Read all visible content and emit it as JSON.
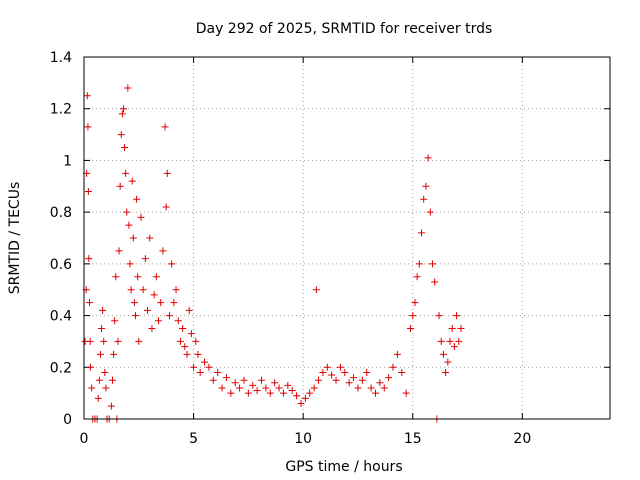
{
  "chart_data": {
    "type": "scatter",
    "title": "Day 292 of 2025, SRMTID for receiver trds",
    "xlabel": "GPS time / hours",
    "ylabel": "SRMTID / TECUs",
    "xlim": [
      0,
      24
    ],
    "ylim": [
      0,
      1.4
    ],
    "xticks": [
      0,
      5,
      10,
      15,
      20
    ],
    "xtick_labels": [
      "0",
      "5",
      "10",
      "15",
      "20"
    ],
    "yticks": [
      0,
      0.2,
      0.4,
      0.6,
      0.8,
      1.0,
      1.2,
      1.4
    ],
    "ytick_labels": [
      "0",
      "0.2",
      "0.4",
      "0.6",
      "0.8",
      "1",
      "1.2",
      "1.4"
    ],
    "grid": true,
    "marker": "+",
    "series": [
      {
        "name": "SRMTID",
        "color": "#e00000",
        "points": [
          [
            0.05,
            0.3
          ],
          [
            0.1,
            0.5
          ],
          [
            0.12,
            0.95
          ],
          [
            0.15,
            1.25
          ],
          [
            0.18,
            1.13
          ],
          [
            0.2,
            0.88
          ],
          [
            0.22,
            0.62
          ],
          [
            0.25,
            0.45
          ],
          [
            0.28,
            0.3
          ],
          [
            0.3,
            0.2
          ],
          [
            0.35,
            0.12
          ],
          [
            0.4,
            0.0
          ],
          [
            0.5,
            0.0
          ],
          [
            0.6,
            0.0
          ],
          [
            0.65,
            0.08
          ],
          [
            0.7,
            0.15
          ],
          [
            0.75,
            0.25
          ],
          [
            0.8,
            0.35
          ],
          [
            0.85,
            0.42
          ],
          [
            0.9,
            0.3
          ],
          [
            0.95,
            0.18
          ],
          [
            1.0,
            0.12
          ],
          [
            1.05,
            0.0
          ],
          [
            1.15,
            0.0
          ],
          [
            1.25,
            0.05
          ],
          [
            1.3,
            0.15
          ],
          [
            1.35,
            0.25
          ],
          [
            1.4,
            0.38
          ],
          [
            1.45,
            0.55
          ],
          [
            1.5,
            0.0
          ],
          [
            1.55,
            0.3
          ],
          [
            1.6,
            0.65
          ],
          [
            1.65,
            0.9
          ],
          [
            1.7,
            1.1
          ],
          [
            1.75,
            1.18
          ],
          [
            1.8,
            1.2
          ],
          [
            1.85,
            1.05
          ],
          [
            1.9,
            0.95
          ],
          [
            1.95,
            0.8
          ],
          [
            2.0,
            1.28
          ],
          [
            2.05,
            0.75
          ],
          [
            2.1,
            0.6
          ],
          [
            2.15,
            0.5
          ],
          [
            2.2,
            0.92
          ],
          [
            2.25,
            0.7
          ],
          [
            2.3,
            0.45
          ],
          [
            2.35,
            0.4
          ],
          [
            2.4,
            0.85
          ],
          [
            2.45,
            0.55
          ],
          [
            2.5,
            0.3
          ],
          [
            2.6,
            0.78
          ],
          [
            2.7,
            0.5
          ],
          [
            2.8,
            0.62
          ],
          [
            2.9,
            0.42
          ],
          [
            3.0,
            0.7
          ],
          [
            3.1,
            0.35
          ],
          [
            3.2,
            0.48
          ],
          [
            3.3,
            0.55
          ],
          [
            3.4,
            0.38
          ],
          [
            3.5,
            0.45
          ],
          [
            3.6,
            0.65
          ],
          [
            3.7,
            1.13
          ],
          [
            3.75,
            0.82
          ],
          [
            3.8,
            0.95
          ],
          [
            3.9,
            0.4
          ],
          [
            4.0,
            0.6
          ],
          [
            4.1,
            0.45
          ],
          [
            4.2,
            0.5
          ],
          [
            4.3,
            0.38
          ],
          [
            4.4,
            0.3
          ],
          [
            4.5,
            0.35
          ],
          [
            4.6,
            0.28
          ],
          [
            4.7,
            0.25
          ],
          [
            4.8,
            0.42
          ],
          [
            4.9,
            0.33
          ],
          [
            5.0,
            0.2
          ],
          [
            5.1,
            0.3
          ],
          [
            5.2,
            0.25
          ],
          [
            5.3,
            0.18
          ],
          [
            5.5,
            0.22
          ],
          [
            5.7,
            0.2
          ],
          [
            5.9,
            0.15
          ],
          [
            6.1,
            0.18
          ],
          [
            6.3,
            0.12
          ],
          [
            6.5,
            0.16
          ],
          [
            6.7,
            0.1
          ],
          [
            6.9,
            0.14
          ],
          [
            7.1,
            0.12
          ],
          [
            7.3,
            0.15
          ],
          [
            7.5,
            0.1
          ],
          [
            7.7,
            0.13
          ],
          [
            7.9,
            0.11
          ],
          [
            8.1,
            0.15
          ],
          [
            8.3,
            0.12
          ],
          [
            8.5,
            0.1
          ],
          [
            8.7,
            0.14
          ],
          [
            8.9,
            0.12
          ],
          [
            9.1,
            0.1
          ],
          [
            9.3,
            0.13
          ],
          [
            9.5,
            0.11
          ],
          [
            9.7,
            0.09
          ],
          [
            9.9,
            0.06
          ],
          [
            10.1,
            0.08
          ],
          [
            10.3,
            0.1
          ],
          [
            10.5,
            0.12
          ],
          [
            10.6,
            0.5
          ],
          [
            10.7,
            0.15
          ],
          [
            10.9,
            0.18
          ],
          [
            11.1,
            0.2
          ],
          [
            11.3,
            0.17
          ],
          [
            11.5,
            0.15
          ],
          [
            11.7,
            0.2
          ],
          [
            11.9,
            0.18
          ],
          [
            12.1,
            0.14
          ],
          [
            12.3,
            0.16
          ],
          [
            12.5,
            0.12
          ],
          [
            12.7,
            0.15
          ],
          [
            12.9,
            0.18
          ],
          [
            13.1,
            0.12
          ],
          [
            13.3,
            0.1
          ],
          [
            13.5,
            0.14
          ],
          [
            13.7,
            0.12
          ],
          [
            13.9,
            0.16
          ],
          [
            14.1,
            0.2
          ],
          [
            14.3,
            0.25
          ],
          [
            14.5,
            0.18
          ],
          [
            14.7,
            0.1
          ],
          [
            14.9,
            0.35
          ],
          [
            15.0,
            0.4
          ],
          [
            15.1,
            0.45
          ],
          [
            15.2,
            0.55
          ],
          [
            15.3,
            0.6
          ],
          [
            15.4,
            0.72
          ],
          [
            15.5,
            0.85
          ],
          [
            15.6,
            0.9
          ],
          [
            15.7,
            1.01
          ],
          [
            15.8,
            0.8
          ],
          [
            15.9,
            0.6
          ],
          [
            16.0,
            0.53
          ],
          [
            16.1,
            0.0
          ],
          [
            16.2,
            0.4
          ],
          [
            16.3,
            0.3
          ],
          [
            16.4,
            0.25
          ],
          [
            16.5,
            0.18
          ],
          [
            16.6,
            0.22
          ],
          [
            16.7,
            0.3
          ],
          [
            16.8,
            0.35
          ],
          [
            16.9,
            0.28
          ],
          [
            17.0,
            0.4
          ],
          [
            17.1,
            0.3
          ],
          [
            17.2,
            0.35
          ]
        ]
      }
    ]
  }
}
